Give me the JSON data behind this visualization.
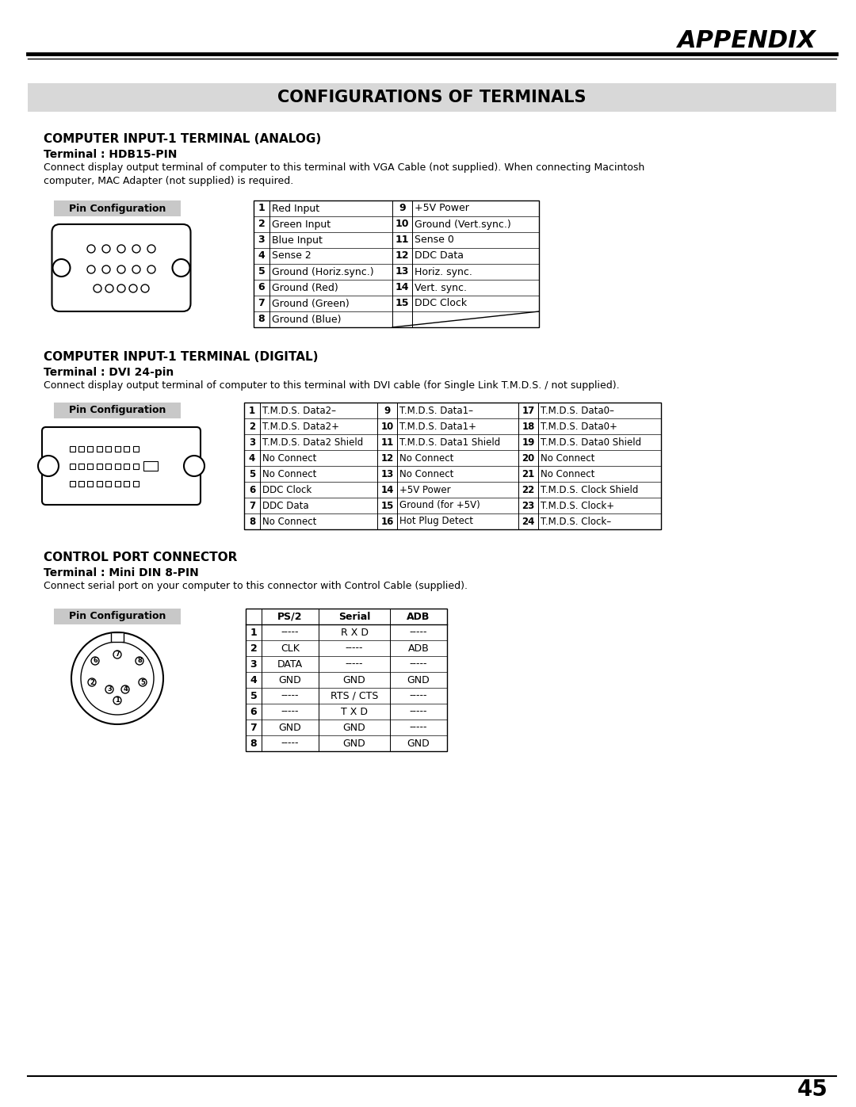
{
  "page_title": "APPENDIX",
  "section_title": "CONFIGURATIONS OF TERMINALS",
  "bg_color": "#ffffff",
  "section_bg": "#d8d8d8",
  "pin_config_bg": "#c8c8c8",
  "table_line_color": "#000000",
  "analog_title": "COMPUTER INPUT-1 TERMINAL (ANALOG)",
  "analog_subtitle": "Terminal : HDB15-PIN",
  "analog_desc": "Connect display output terminal of computer to this terminal with VGA Cable (not supplied). When connecting Macintosh\ncomputer, MAC Adapter (not supplied) is required.",
  "analog_pins_left": [
    [
      "1",
      "Red Input",
      "9",
      "+5V Power"
    ],
    [
      "2",
      "Green Input",
      "10",
      "Ground (Vert.sync.)"
    ],
    [
      "3",
      "Blue Input",
      "11",
      "Sense 0"
    ],
    [
      "4",
      "Sense 2",
      "12",
      "DDC Data"
    ],
    [
      "5",
      "Ground (Horiz.sync.)",
      "13",
      "Horiz. sync."
    ],
    [
      "6",
      "Ground (Red)",
      "14",
      "Vert. sync."
    ],
    [
      "7",
      "Ground (Green)",
      "15",
      "DDC Clock"
    ],
    [
      "8",
      "Ground (Blue)",
      "",
      ""
    ]
  ],
  "digital_title": "COMPUTER INPUT-1 TERMINAL (DIGITAL)",
  "digital_subtitle": "Terminal : DVI 24-pin",
  "digital_desc": "Connect display output terminal of computer to this terminal with DVI cable (for Single Link T.M.D.S. / not supplied).",
  "digital_pins": [
    [
      "1",
      "T.M.D.S. Data2–",
      "9",
      "T.M.D.S. Data1–",
      "17",
      "T.M.D.S. Data0–"
    ],
    [
      "2",
      "T.M.D.S. Data2+",
      "10",
      "T.M.D.S. Data1+",
      "18",
      "T.M.D.S. Data0+"
    ],
    [
      "3",
      "T.M.D.S. Data2 Shield",
      "11",
      "T.M.D.S. Data1 Shield",
      "19",
      "T.M.D.S. Data0 Shield"
    ],
    [
      "4",
      "No Connect",
      "12",
      "No Connect",
      "20",
      "No Connect"
    ],
    [
      "5",
      "No Connect",
      "13",
      "No Connect",
      "21",
      "No Connect"
    ],
    [
      "6",
      "DDC Clock",
      "14",
      "+5V Power",
      "22",
      "T.M.D.S. Clock Shield"
    ],
    [
      "7",
      "DDC Data",
      "15",
      "Ground (for +5V)",
      "23",
      "T.M.D.S. Clock+"
    ],
    [
      "8",
      "No Connect",
      "16",
      "Hot Plug Detect",
      "24",
      "T.M.D.S. Clock–"
    ]
  ],
  "control_title": "CONTROL PORT CONNECTOR",
  "control_subtitle": "Terminal : Mini DIN 8-PIN",
  "control_desc": "Connect serial port on your computer to this connector with Control Cable (supplied).",
  "control_pins": [
    [
      "",
      "PS/2",
      "Serial",
      "ADB"
    ],
    [
      "1",
      "-----",
      "R X D",
      "-----"
    ],
    [
      "2",
      "CLK",
      "-----",
      "ADB"
    ],
    [
      "3",
      "DATA",
      "-----",
      "-----"
    ],
    [
      "4",
      "GND",
      "GND",
      "GND"
    ],
    [
      "5",
      "-----",
      "RTS / CTS",
      "-----"
    ],
    [
      "6",
      "-----",
      "T X D",
      "-----"
    ],
    [
      "7",
      "GND",
      "GND",
      "-----"
    ],
    [
      "8",
      "-----",
      "GND",
      "GND"
    ]
  ],
  "page_number": "45"
}
